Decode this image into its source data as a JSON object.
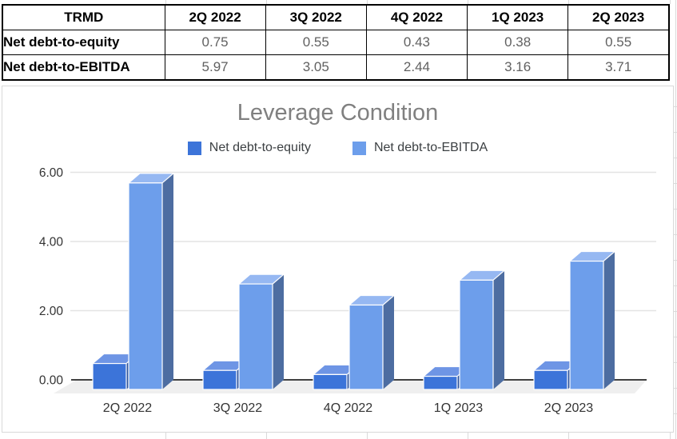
{
  "table": {
    "header": [
      "TRMD",
      "2Q 2022",
      "3Q 2022",
      "4Q 2022",
      "1Q 2023",
      "2Q 2023"
    ],
    "rows": [
      {
        "label": "Net debt-to-equity",
        "values": [
          "0.75",
          "0.55",
          "0.43",
          "0.38",
          "0.55"
        ]
      },
      {
        "label": "Net debt-to-EBITDA",
        "values": [
          "5.97",
          "3.05",
          "2.44",
          "3.16",
          "3.71"
        ]
      }
    ]
  },
  "chart_data": {
    "type": "bar",
    "style": "3d-column",
    "title": "Leverage Condition",
    "categories": [
      "2Q 2022",
      "3Q 2022",
      "4Q 2022",
      "1Q 2023",
      "2Q 2023"
    ],
    "series": [
      {
        "name": "Net debt-to-equity",
        "values": [
          0.75,
          0.55,
          0.43,
          0.38,
          0.55
        ],
        "color": "#3c74d9",
        "color_top": "#6e95e5",
        "color_side": "#2d549e"
      },
      {
        "name": "Net debt-to-EBITDA",
        "values": [
          5.97,
          3.05,
          2.44,
          3.16,
          3.71
        ],
        "color": "#6d9eeb",
        "color_top": "#96b8f2",
        "color_side": "#4d6da1"
      }
    ],
    "ylim": [
      0,
      6
    ],
    "yticks": [
      0,
      2,
      4,
      6
    ],
    "ytick_labels": [
      "0.00",
      "2.00",
      "4.00",
      "6.00"
    ],
    "legend_position": "top",
    "grid": true,
    "title_color": "#808080",
    "axis_label_color": "#333333",
    "gridline_color": "#e3e3e3",
    "baseline_color": "#424242",
    "floor_color": "#efefef"
  }
}
